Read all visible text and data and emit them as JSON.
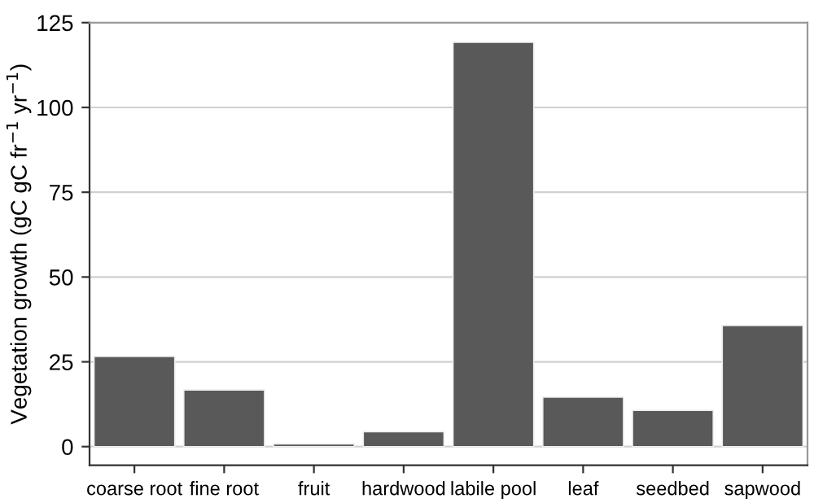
{
  "chart_data": {
    "type": "bar",
    "ylabel": "Vegetation growth (gC gC fr$^{−1}$ yr$^{−1}$)",
    "categories": [
      "coarse root",
      "fine root",
      "fruit",
      "hardwood",
      "labile pool",
      "leaf",
      "seedbed",
      "sapwood"
    ],
    "values": [
      26.6,
      16.7,
      0.8,
      4.4,
      119.2,
      14.6,
      10.7,
      35.7
    ],
    "color": "#595959",
    "ylim": [
      -5.5,
      125
    ],
    "yticks": [
      0,
      25,
      50,
      75,
      100,
      125
    ],
    "grid": "y"
  }
}
